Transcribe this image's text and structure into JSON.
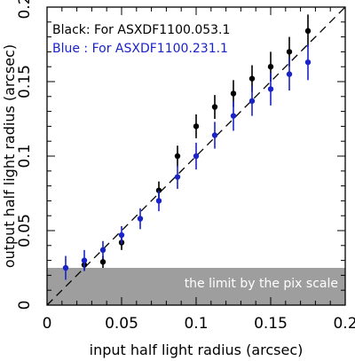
{
  "chart_data": {
    "type": "scatter",
    "xlabel": "input half light radius (arcsec)",
    "ylabel": "output half light radius (arcsec)",
    "xlim": [
      0,
      0.2
    ],
    "ylim": [
      0,
      0.2
    ],
    "x_ticks": [
      "0",
      "0.05",
      "0.1",
      "0.15",
      "0.2"
    ],
    "y_ticks": [
      "0",
      "0.05",
      "0.1",
      "0.15",
      "0.2"
    ],
    "grid": false,
    "legend_position": "top-left",
    "reference_line": {
      "style": "dashed",
      "from": [
        0,
        0
      ],
      "to": [
        0.2,
        0.2
      ],
      "color": "#000000"
    },
    "shaded_region": {
      "y_range": [
        0,
        0.025
      ],
      "label": "the limit by the pix scale",
      "color": "#9e9e9e"
    },
    "series": [
      {
        "name": "Black: For ASXDF1100.053.1",
        "color": "#000000",
        "x": [
          0.025,
          0.0375,
          0.05,
          0.075,
          0.0875,
          0.1,
          0.1125,
          0.125,
          0.1375,
          0.15,
          0.1625,
          0.175
        ],
        "y": [
          0.027,
          0.029,
          0.042,
          0.077,
          0.1,
          0.12,
          0.133,
          0.142,
          0.152,
          0.16,
          0.17,
          0.184
        ],
        "err": [
          0.004,
          0.004,
          0.005,
          0.006,
          0.007,
          0.008,
          0.008,
          0.009,
          0.009,
          0.01,
          0.01,
          0.011
        ]
      },
      {
        "name": "Blue : For ASXDF1100.231.1",
        "color": "#1a23c8",
        "x": [
          0.0125,
          0.025,
          0.0375,
          0.05,
          0.0625,
          0.075,
          0.0875,
          0.1,
          0.1125,
          0.125,
          0.1375,
          0.15,
          0.1625,
          0.175
        ],
        "y": [
          0.025,
          0.03,
          0.037,
          0.047,
          0.058,
          0.07,
          0.086,
          0.1,
          0.114,
          0.127,
          0.137,
          0.145,
          0.155,
          0.163
        ],
        "err": [
          0.008,
          0.007,
          0.006,
          0.006,
          0.007,
          0.007,
          0.008,
          0.009,
          0.009,
          0.01,
          0.01,
          0.011,
          0.011,
          0.012
        ]
      }
    ]
  }
}
